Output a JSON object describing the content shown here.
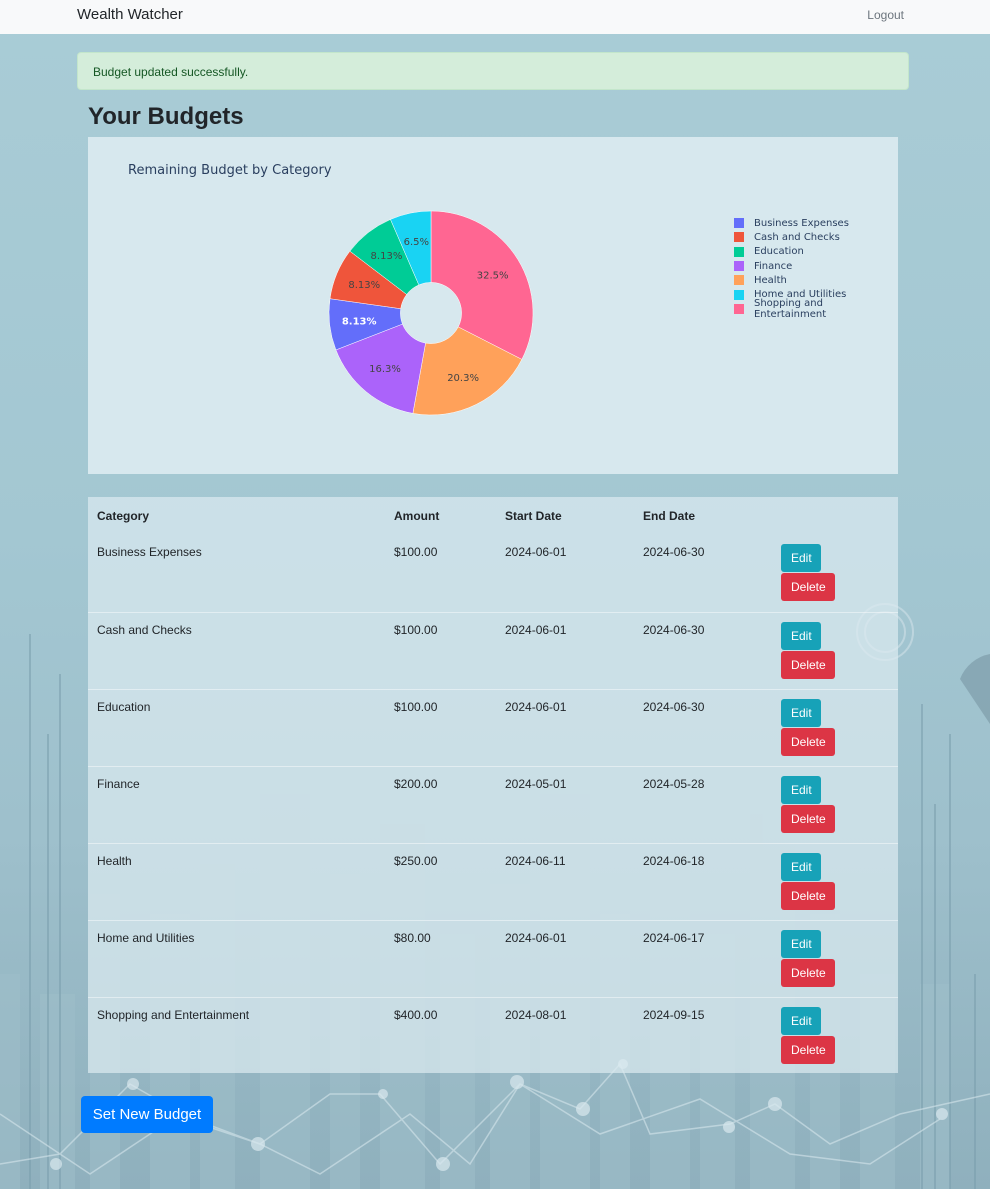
{
  "navbar": {
    "brand": "Wealth Watcher",
    "logout": "Logout"
  },
  "alert": {
    "message": "Budget updated successfully."
  },
  "page": {
    "title": "Your Budgets"
  },
  "chart_data": {
    "type": "pie",
    "hole": 0.3,
    "title": "Remaining Budget by Category",
    "legend_position": "right",
    "slices": [
      {
        "label": "Business Expenses",
        "value": 100,
        "percent": "8.13%",
        "color": "#636efa",
        "text_color": "#ffffff"
      },
      {
        "label": "Cash and Checks",
        "value": 100,
        "percent": "8.13%",
        "color": "#ef553b",
        "text_color": "#444444"
      },
      {
        "label": "Education",
        "value": 100,
        "percent": "8.13%",
        "color": "#00cc96",
        "text_color": "#444444"
      },
      {
        "label": "Finance",
        "value": 200,
        "percent": "16.3%",
        "color": "#ab63fa",
        "text_color": "#444444"
      },
      {
        "label": "Health",
        "value": 250,
        "percent": "20.3%",
        "color": "#ffa15a",
        "text_color": "#444444"
      },
      {
        "label": "Home and Utilities",
        "value": 80,
        "percent": "6.5%",
        "color": "#19d3f3",
        "text_color": "#444444"
      },
      {
        "label": "Shopping and Entertainment",
        "value": 400,
        "percent": "32.5%",
        "color": "#ff6692",
        "text_color": "#444444"
      }
    ],
    "draw_order": [
      "Shopping and Entertainment",
      "Health",
      "Finance",
      "Business Expenses",
      "Cash and Checks",
      "Education",
      "Home and Utilities"
    ]
  },
  "table": {
    "headers": {
      "category": "Category",
      "amount": "Amount",
      "start": "Start Date",
      "end": "End Date"
    },
    "edit_label": "Edit",
    "delete_label": "Delete",
    "rows": [
      {
        "category": "Business Expenses",
        "amount": "$100.00",
        "start": "2024-06-01",
        "end": "2024-06-30"
      },
      {
        "category": "Cash and Checks",
        "amount": "$100.00",
        "start": "2024-06-01",
        "end": "2024-06-30"
      },
      {
        "category": "Education",
        "amount": "$100.00",
        "start": "2024-06-01",
        "end": "2024-06-30"
      },
      {
        "category": "Finance",
        "amount": "$200.00",
        "start": "2024-05-01",
        "end": "2024-05-28"
      },
      {
        "category": "Health",
        "amount": "$250.00",
        "start": "2024-06-11",
        "end": "2024-06-18"
      },
      {
        "category": "Home and Utilities",
        "amount": "$80.00",
        "start": "2024-06-01",
        "end": "2024-06-17"
      },
      {
        "category": "Shopping and Entertainment",
        "amount": "$400.00",
        "start": "2024-08-01",
        "end": "2024-09-15"
      }
    ]
  },
  "set_budget_button": "Set New Budget"
}
